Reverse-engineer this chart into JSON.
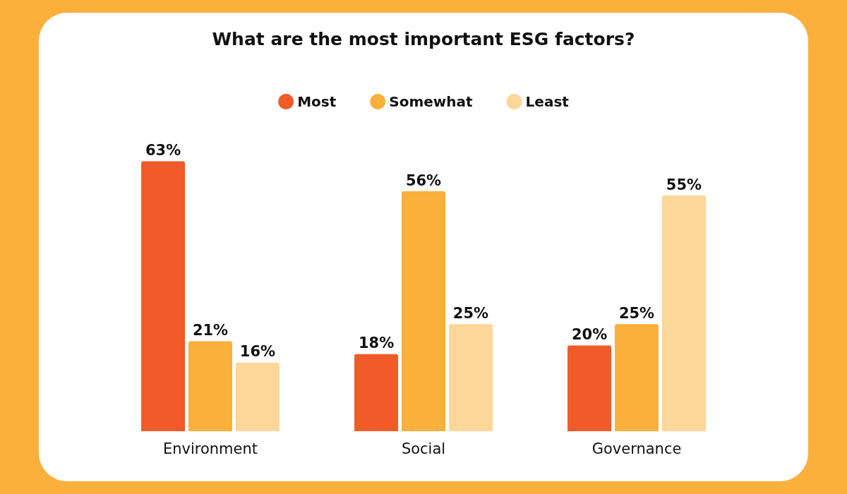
{
  "chart_data": {
    "type": "bar",
    "title": "What are the most important ESG factors?",
    "categories": [
      "Environment",
      "Social",
      "Governance"
    ],
    "series": [
      {
        "name": "Most",
        "color": "#f15a29",
        "values": [
          63,
          18,
          20
        ],
        "value_labels": [
          "63%",
          "18%",
          "20%"
        ]
      },
      {
        "name": "Somewhat",
        "color": "#fbb03b",
        "values": [
          21,
          56,
          25
        ],
        "value_labels": [
          "21%",
          "56%",
          "25%"
        ]
      },
      {
        "name": "Least",
        "color": "#fdd699",
        "values": [
          16,
          25,
          55
        ],
        "value_labels": [
          "16%",
          "25%",
          "55%"
        ]
      }
    ],
    "legend": "top"
  }
}
